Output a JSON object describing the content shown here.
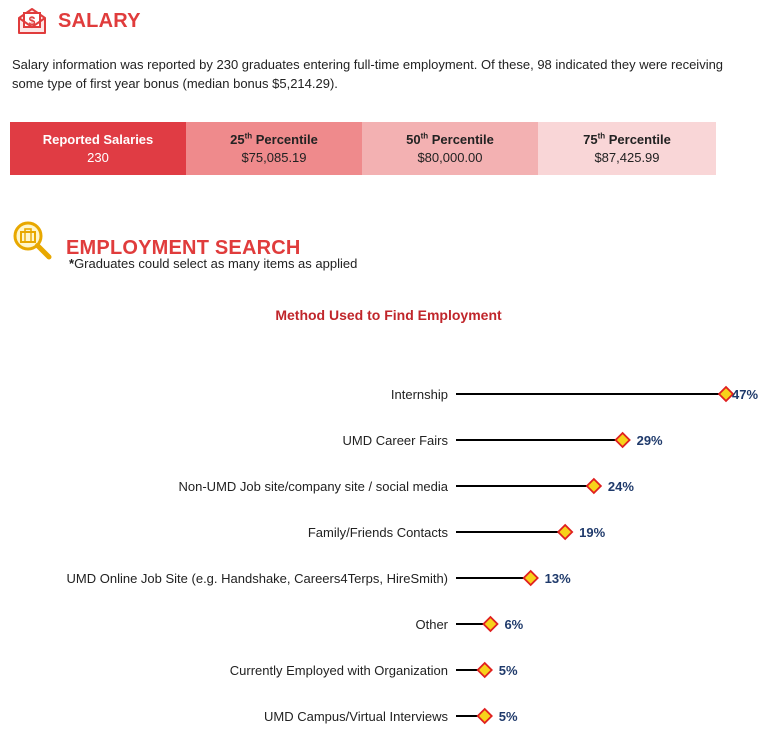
{
  "salary": {
    "title": "SALARY",
    "intro": "Salary information was reported by 230 graduates entering full-time employment.  Of these, 98 indicated they were receiving some type of first year bonus (median bonus $5,214.29).",
    "table": [
      {
        "label": "Reported Salaries",
        "sup": "",
        "suffix": "",
        "value": "230",
        "bg": "#e03c44",
        "color": "#ffffff"
      },
      {
        "label": "25",
        "sup": "th",
        "suffix": " Percentile",
        "value": "$75,085.19",
        "bg": "#ef8a8c",
        "color": "#222222"
      },
      {
        "label": "50",
        "sup": "th",
        "suffix": " Percentile",
        "value": "$80,000.00",
        "bg": "#f3b1b2",
        "color": "#222222"
      },
      {
        "label": "75",
        "sup": "th",
        "suffix": " Percentile",
        "value": "$87,425.99",
        "bg": "#f9d6d7",
        "color": "#222222"
      }
    ]
  },
  "employment": {
    "title": "EMPLOYMENT SEARCH",
    "note_star": "*",
    "note": "Graduates could select as many items as applied"
  },
  "chart_data": {
    "type": "lollipop",
    "title": "Method Used to Find Employment",
    "categories": [
      "Internship",
      "UMD Career Fairs",
      "Non-UMD Job site/company site / social media",
      "Family/Friends Contacts",
      "UMD Online Job Site (e.g. Handshake, Careers4Terps, HireSmith)",
      "Other",
      "Currently Employed with Organization",
      "UMD Campus/Virtual Interviews"
    ],
    "values": [
      47,
      29,
      24,
      19,
      13,
      6,
      5,
      5
    ],
    "value_labels": [
      "47%",
      "29%",
      "24%",
      "19%",
      "13%",
      "6%",
      "5%",
      "5%"
    ],
    "unit": "%",
    "xlim": [
      0,
      47
    ],
    "marker_fill": "#f7d21a",
    "marker_stroke": "#e02020",
    "label_color": "#1f3a6b"
  }
}
